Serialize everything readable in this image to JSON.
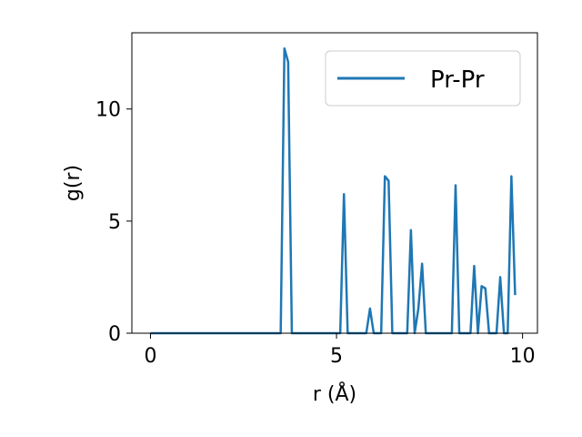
{
  "chart_data": {
    "type": "line",
    "xlabel": "r (Å)",
    "ylabel": "g(r)",
    "xlim": [
      -0.5,
      10.4
    ],
    "ylim": [
      0,
      13.4
    ],
    "xticks": [
      {
        "value": 0,
        "label": "0"
      },
      {
        "value": 5,
        "label": "5"
      },
      {
        "value": 10,
        "label": "10"
      }
    ],
    "yticks": [
      {
        "value": 0,
        "label": "0"
      },
      {
        "value": 5,
        "label": "5"
      },
      {
        "value": 10,
        "label": "10"
      }
    ],
    "legend_position": "top-right",
    "grid": false,
    "series": [
      {
        "name": "Pr-Pr",
        "color": "#1f77b4",
        "x": [
          0.0,
          3.5,
          3.6,
          3.7,
          3.8,
          5.1,
          5.2,
          5.3,
          5.8,
          5.9,
          6.0,
          6.2,
          6.3,
          6.4,
          6.5,
          6.9,
          7.0,
          7.1,
          7.2,
          7.3,
          7.4,
          7.5,
          8.1,
          8.2,
          8.3,
          8.6,
          8.7,
          8.8,
          8.9,
          9.0,
          9.1,
          9.3,
          9.4,
          9.5,
          9.6,
          9.7,
          9.8
        ],
        "y": [
          0,
          0,
          12.7,
          12.1,
          0,
          0,
          6.2,
          0,
          0,
          1.1,
          0,
          0,
          7.0,
          6.8,
          0,
          0,
          4.6,
          0,
          1.1,
          3.1,
          0,
          0,
          0,
          6.6,
          0,
          0,
          3.0,
          0,
          2.1,
          2.0,
          0,
          0,
          2.5,
          0,
          0,
          7.0,
          1.7
        ]
      }
    ]
  }
}
